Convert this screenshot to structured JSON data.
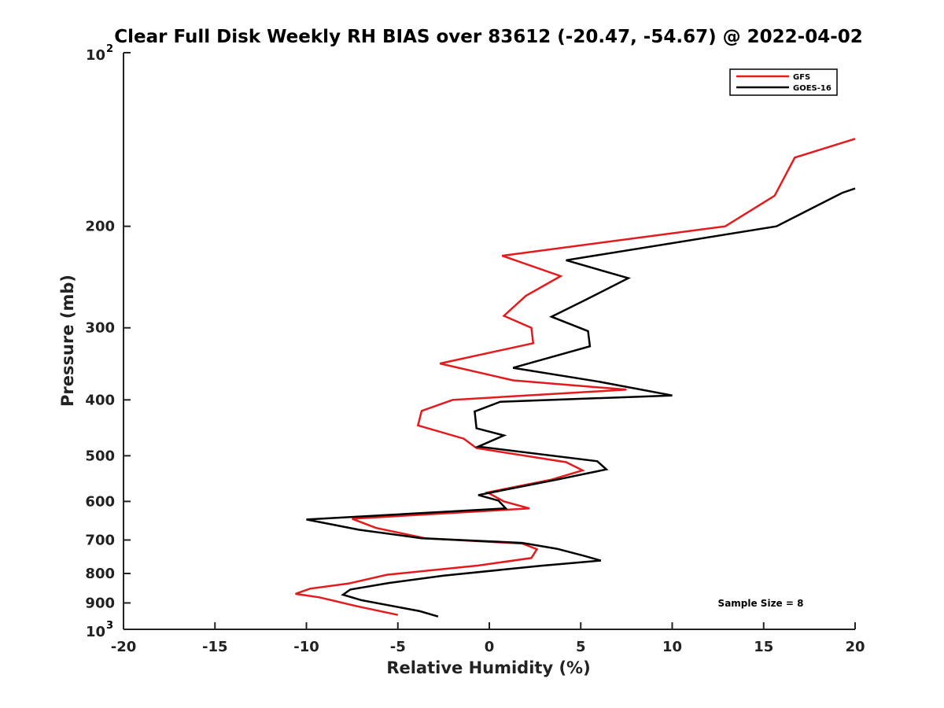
{
  "chart_data": {
    "type": "line",
    "title": "Clear Full Disk Weekly RH BIAS over 83612 (-20.47, -54.67) @ 2022-04-02",
    "xlabel": "Relative Humidity (%)",
    "ylabel": "Pressure (mb)",
    "xlim": [
      -20,
      20
    ],
    "ylim": [
      100,
      1000
    ],
    "y_scale": "log",
    "y_reversed": true,
    "x_ticks": [
      "-20",
      "-15",
      "-10",
      "-5",
      "0",
      "5",
      "10",
      "15",
      "20"
    ],
    "y_ticks": [
      {
        "value": 100,
        "base": "10",
        "exp": "2"
      },
      {
        "value": 200,
        "label": "200"
      },
      {
        "value": 300,
        "label": "300"
      },
      {
        "value": 400,
        "label": "400"
      },
      {
        "value": 500,
        "label": "500"
      },
      {
        "value": 600,
        "label": "600"
      },
      {
        "value": 700,
        "label": "700"
      },
      {
        "value": 800,
        "label": "800"
      },
      {
        "value": 900,
        "label": "900"
      },
      {
        "value": 1000,
        "base": "10",
        "exp": "3"
      }
    ],
    "grid": false,
    "legend_position": "top-right",
    "annotation": "Sample Size = 8",
    "series": [
      {
        "name": "GFS",
        "color": "#e41a1c",
        "x": [
          20.0,
          16.7,
          15.6,
          12.9,
          0.7,
          3.9,
          2.0,
          0.8,
          2.3,
          2.4,
          -2.7,
          1.3,
          7.5,
          -2.0,
          -3.7,
          -3.9,
          -1.4,
          -0.7,
          4.2,
          5.1,
          3.4,
          -0.1,
          0.8,
          2.2,
          -7.5,
          -6.2,
          -3.5,
          1.8,
          2.6,
          2.3,
          -0.6,
          -5.6,
          -7.7,
          -9.8,
          -10.6,
          -9.3,
          -7.3,
          -5.0
        ],
        "y": [
          141,
          152,
          177,
          200,
          225,
          244,
          264,
          286,
          300,
          319,
          346,
          370,
          384,
          400,
          418,
          443,
          467,
          485,
          513,
          530,
          550,
          579,
          600,
          617,
          643,
          667,
          695,
          710,
          726,
          752,
          775,
          804,
          833,
          850,
          868,
          880,
          911,
          944
        ]
      },
      {
        "name": "GOES-16",
        "color": "#000000",
        "x": [
          20.0,
          19.3,
          15.7,
          4.2,
          7.6,
          5.3,
          3.4,
          5.4,
          5.5,
          1.3,
          6.0,
          10.0,
          0.6,
          -0.8,
          -0.7,
          0.8,
          -0.6,
          5.9,
          6.4,
          3.7,
          -0.6,
          0.5,
          0.9,
          -10.0,
          -7.1,
          -3.7,
          1.8,
          3.7,
          5.2,
          6.1,
          2.8,
          -2.5,
          -5.5,
          -7.6,
          -8.0,
          -7.0,
          -3.8,
          -2.8
        ],
        "y": [
          172,
          175,
          200,
          229,
          246,
          268,
          287,
          304,
          323,
          352,
          372,
          393,
          403,
          419,
          448,
          461,
          482,
          511,
          528,
          550,
          585,
          598,
          617,
          645,
          672,
          695,
          708,
          725,
          746,
          760,
          776,
          807,
          831,
          853,
          871,
          890,
          930,
          950
        ]
      }
    ]
  }
}
